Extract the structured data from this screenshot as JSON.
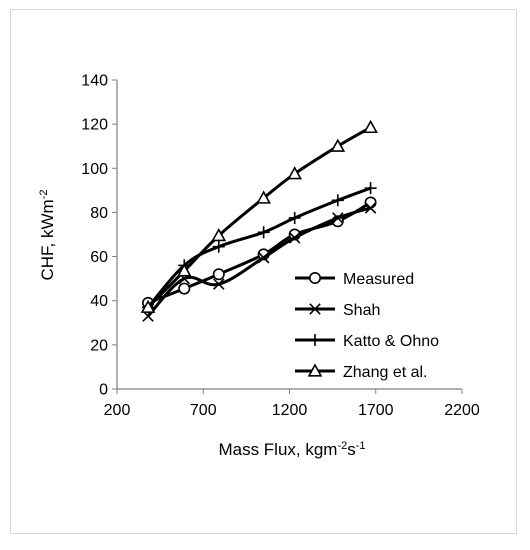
{
  "chart_data": {
    "type": "line",
    "xlabel": "Mass Flux, kgm",
    "xlabel_sup": "-2",
    "xlabel_mid": "s",
    "xlabel_sup2": "-1",
    "ylabel": "CHF, kWm",
    "ylabel_sup": "-2",
    "xlim": [
      200,
      2200
    ],
    "ylim": [
      0,
      140
    ],
    "xticks": [
      200,
      700,
      1200,
      1700,
      2200
    ],
    "yticks": [
      0,
      20,
      40,
      60,
      80,
      100,
      120,
      140
    ],
    "grid": false,
    "legend": "lower-right",
    "series": [
      {
        "name": "Measured",
        "marker": "circle",
        "x": [
          380,
          590,
          790,
          1050,
          1230,
          1480,
          1670
        ],
        "y": [
          39,
          45.5,
          52,
          61,
          70,
          76,
          84.5
        ]
      },
      {
        "name": "Shah",
        "marker": "x",
        "x": [
          380,
          590,
          790,
          1050,
          1230,
          1480,
          1670
        ],
        "y": [
          33,
          50,
          47.5,
          59.5,
          68.5,
          77.5,
          82
        ]
      },
      {
        "name": "Katto & Ohno",
        "marker": "plus",
        "x": [
          380,
          590,
          790,
          1050,
          1230,
          1480,
          1670
        ],
        "y": [
          37,
          56,
          64.5,
          71,
          77.5,
          85.5,
          91
        ]
      },
      {
        "name": "Zhang et al.",
        "marker": "triangle",
        "x": [
          380,
          590,
          790,
          1050,
          1230,
          1480,
          1670
        ],
        "y": [
          37,
          53.5,
          69.5,
          86.5,
          97.5,
          110,
          118.5
        ]
      }
    ]
  }
}
